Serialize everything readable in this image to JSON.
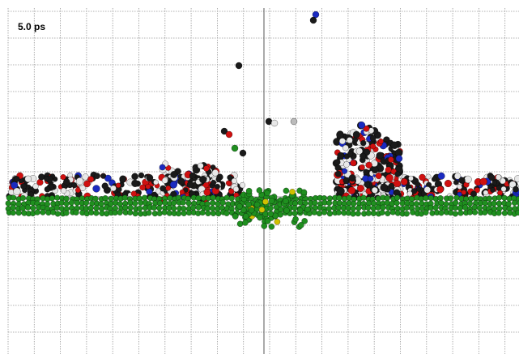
{
  "time_label": "5.0 ps"
}
